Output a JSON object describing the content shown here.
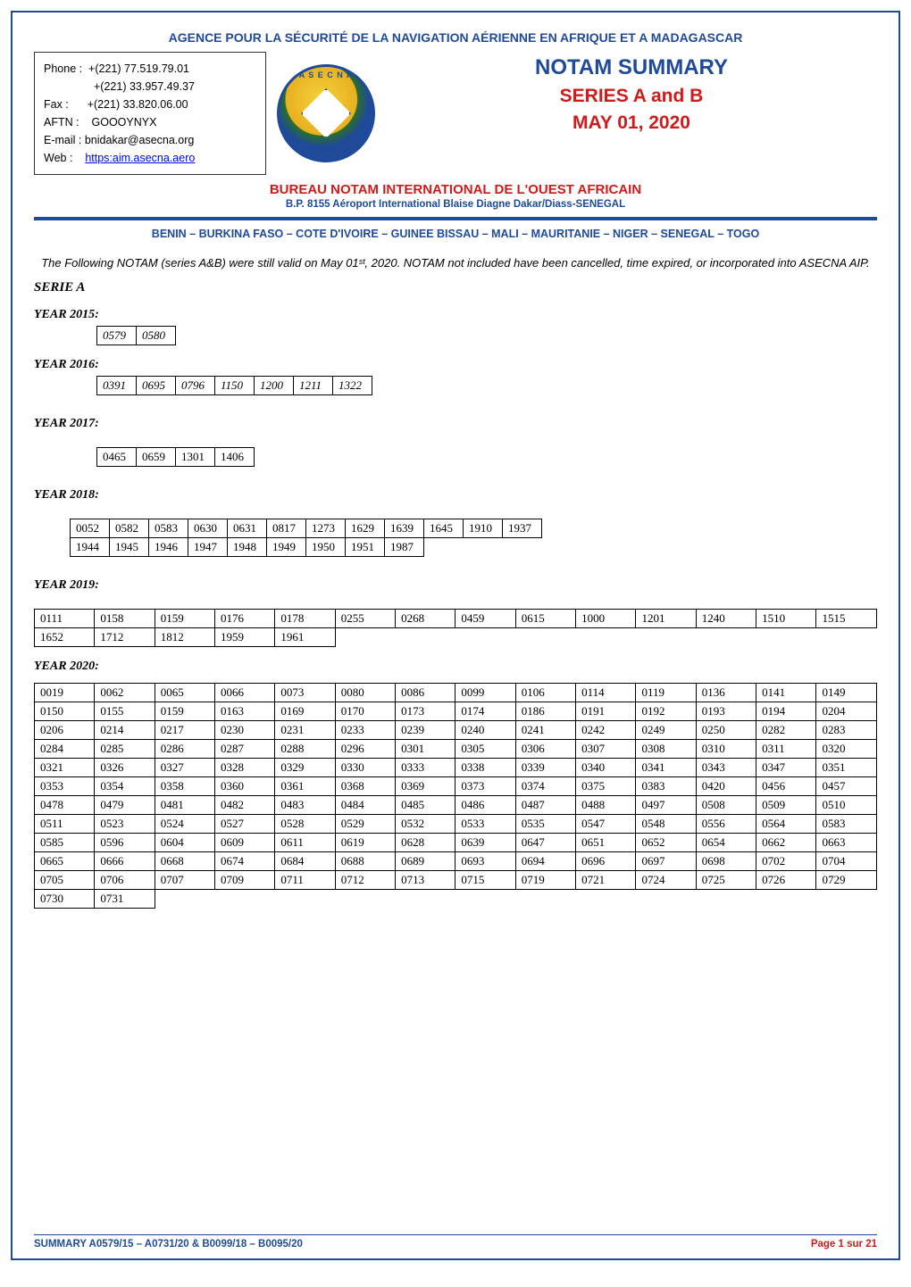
{
  "agency_title": "AGENCE POUR LA SÉCURITÉ DE LA NAVIGATION AÉRIENNE EN AFRIQUE ET A MADAGASCAR",
  "info_box": {
    "phone_label": "Phone :",
    "phone1": "+(221) 77.519.79.01",
    "phone2": "+(221) 33.957.49.37",
    "fax_label": "Fax :",
    "fax": "+(221) 33.820.06.00",
    "aftn_label": "AFTN :",
    "aftn": "GOOOYNYX",
    "email_label": "E-mail :",
    "email": "bnidakar@asecna.org",
    "web_label": "Web :",
    "web": "https:aim.asecna.aero"
  },
  "logo_text": "A S E C N A",
  "titles": {
    "notam": "NOTAM SUMMARY",
    "series": "SERIES A and B",
    "date": "MAY 01,  2020"
  },
  "bureau": "BUREAU NOTAM INTERNATIONAL DE L'OUEST AFRICAIN",
  "bp": "B.P. 8155 Aéroport International Blaise Diagne Dakar/Diass-SENEGAL",
  "countries": "BENIN – BURKINA FASO – COTE D'IVOIRE – GUINEE BISSAU – MALI – MAURITANIE – NIGER – SENEGAL – TOGO",
  "intro": "The Following NOTAM (series A&B) were still valid on May 01ˢᵗ, 2020. NOTAM not included have been cancelled, time expired, or incorporated into ASECNA AIP.",
  "serie_a": "SERIE A",
  "years": {
    "y2015_label": "YEAR 2015:",
    "y2015": [
      "0579",
      "0580"
    ],
    "y2016_label": "YEAR 2016:",
    "y2016": [
      "0391",
      "0695",
      "0796",
      "1150",
      "1200",
      "1211",
      "1322"
    ],
    "y2017_label": "YEAR 2017:",
    "y2017": [
      "0465",
      "0659",
      "1301",
      "1406"
    ],
    "y2018_label": "YEAR 2018:",
    "y2018_r1": [
      "0052",
      "0582",
      "0583",
      "0630",
      "0631",
      "0817",
      "1273",
      "1629",
      "1639",
      "1645",
      "1910",
      "1937"
    ],
    "y2018_r2": [
      "1944",
      "1945",
      "1946",
      "1947",
      "1948",
      "1949",
      "1950",
      "1951",
      "1987"
    ],
    "y2019_label": "YEAR 2019:",
    "y2019_r1": [
      "0111",
      "0158",
      "0159",
      "0176",
      "0178",
      "0255",
      "0268",
      "0459",
      "0615",
      "1000",
      "1201",
      "1240",
      "1510",
      "1515"
    ],
    "y2019_r2": [
      "1652",
      "1712",
      "1812",
      "1959",
      "1961"
    ],
    "y2020_label": "YEAR 2020:",
    "y2020": [
      [
        "0019",
        "0062",
        "0065",
        "0066",
        "0073",
        "0080",
        "0086",
        "0099",
        "0106",
        "0114",
        "0119",
        "0136",
        "0141",
        "0149"
      ],
      [
        "0150",
        "0155",
        "0159",
        "0163",
        "0169",
        "0170",
        "0173",
        "0174",
        "0186",
        "0191",
        "0192",
        "0193",
        "0194",
        "0204"
      ],
      [
        "0206",
        "0214",
        "0217",
        "0230",
        "0231",
        "0233",
        "0239",
        "0240",
        "0241",
        "0242",
        "0249",
        "0250",
        "0282",
        "0283"
      ],
      [
        "0284",
        "0285",
        "0286",
        "0287",
        "0288",
        "0296",
        "0301",
        "0305",
        "0306",
        "0307",
        "0308",
        "0310",
        "0311",
        "0320"
      ],
      [
        "0321",
        "0326",
        "0327",
        "0328",
        "0329",
        "0330",
        "0333",
        "0338",
        "0339",
        "0340",
        "0341",
        "0343",
        "0347",
        "0351"
      ],
      [
        "0353",
        "0354",
        "0358",
        "0360",
        "0361",
        "0368",
        "0369",
        "0373",
        "0374",
        "0375",
        "0383",
        "0420",
        "0456",
        "0457"
      ],
      [
        "0478",
        "0479",
        "0481",
        "0482",
        "0483",
        "0484",
        "0485",
        "0486",
        "0487",
        "0488",
        "0497",
        "0508",
        "0509",
        "0510"
      ],
      [
        "0511",
        "0523",
        "0524",
        "0527",
        "0528",
        "0529",
        "0532",
        "0533",
        "0535",
        "0547",
        "0548",
        "0556",
        "0564",
        "0583"
      ],
      [
        "0585",
        "0596",
        "0604",
        "0609",
        "0611",
        "0619",
        "0628",
        "0639",
        "0647",
        "0651",
        "0652",
        "0654",
        "0662",
        "0663"
      ],
      [
        "0665",
        "0666",
        "0668",
        "0674",
        "0684",
        "0688",
        "0689",
        "0693",
        "0694",
        "0696",
        "0697",
        "0698",
        "0702",
        "0704"
      ],
      [
        "0705",
        "0706",
        "0707",
        "0709",
        "0711",
        "0712",
        "0713",
        "0715",
        "0719",
        "0721",
        "0724",
        "0725",
        "0726",
        "0729"
      ],
      [
        "0730",
        "0731"
      ]
    ]
  },
  "footer": {
    "left": "SUMMARY A0579/15 – A0731/20 & B0099/18 – B0095/20",
    "right": "Page 1 sur 21"
  },
  "colors": {
    "blue": "#1e4a99",
    "red": "#d11a1a",
    "black": "#000000"
  }
}
